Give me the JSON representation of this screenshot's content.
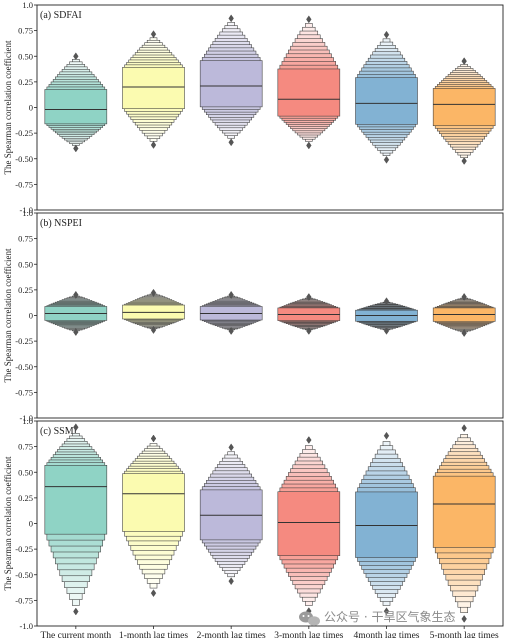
{
  "chart_data": [
    {
      "type": "letter-value plot",
      "panel_label": "(a) SDFAI",
      "ylabel": "The Spearman correlation coefficient",
      "ylim": [
        -1.0,
        1.0
      ],
      "yticks": [
        "1.0",
        "0.75",
        "0.50",
        "0.25",
        "0",
        "-0.25",
        "-0.50",
        "-0.75",
        "-1.0"
      ],
      "series": [
        {
          "category": "The current month",
          "color": "#8fd3c5",
          "median": -0.02,
          "min": -0.37,
          "max": 0.47
        },
        {
          "category": "1-month lag times",
          "color": "#fbfbb0",
          "median": 0.2,
          "min": -0.33,
          "max": 0.68
        },
        {
          "category": "2-month lag times",
          "color": "#bcb9da",
          "median": 0.21,
          "min": -0.3,
          "max": 0.83
        },
        {
          "category": "3-month lag times",
          "color": "#f58a80",
          "median": 0.08,
          "min": -0.33,
          "max": 0.82
        },
        {
          "category": "4month lag times",
          "color": "#82b2d3",
          "median": 0.04,
          "min": -0.47,
          "max": 0.67
        },
        {
          "category": "5-month lag times",
          "color": "#fbb666",
          "median": 0.03,
          "min": -0.49,
          "max": 0.42
        }
      ]
    },
    {
      "type": "letter-value plot",
      "panel_label": "(b) NSPEI",
      "ylabel": "The Spearman correlation coefficient",
      "ylim": [
        -1.0,
        1.0
      ],
      "yticks": [
        "1.0",
        "0.75",
        "0.50",
        "0.25",
        "0",
        "-0.25",
        "-0.50",
        "-0.75",
        "-1.0"
      ],
      "series": [
        {
          "category": "The current month",
          "color": "#8fd3c5",
          "median": 0.02,
          "min": -0.15,
          "max": 0.19
        },
        {
          "category": "1-month lag times",
          "color": "#fbfbb0",
          "median": 0.03,
          "min": -0.13,
          "max": 0.21
        },
        {
          "category": "2-month lag times",
          "color": "#bcb9da",
          "median": 0.02,
          "min": -0.14,
          "max": 0.19
        },
        {
          "category": "3-month lag times",
          "color": "#f58a80",
          "median": 0.01,
          "min": -0.14,
          "max": 0.17
        },
        {
          "category": "4month lag times",
          "color": "#82b2d3",
          "median": 0.0,
          "min": -0.14,
          "max": 0.13
        },
        {
          "category": "5-month lag times",
          "color": "#fbb666",
          "median": 0.01,
          "min": -0.16,
          "max": 0.17
        }
      ]
    },
    {
      "type": "letter-value plot",
      "panel_label": "(c) SSMI",
      "ylabel": "The Spearman correlation coefficient",
      "ylim": [
        -1.0,
        1.0
      ],
      "yticks": [
        "1.0",
        "0.75",
        "0.50",
        "0.25",
        "0",
        "-0.25",
        "-0.50",
        "-0.75",
        "-1.0"
      ],
      "series": [
        {
          "category": "The current month",
          "color": "#8fd3c5",
          "median": 0.36,
          "min": -0.8,
          "max": 0.88
        },
        {
          "category": "1-month lag times",
          "color": "#fbfbb0",
          "median": 0.29,
          "min": -0.63,
          "max": 0.78
        },
        {
          "category": "2-month lag times",
          "color": "#bcb9da",
          "median": 0.08,
          "min": -0.52,
          "max": 0.7
        },
        {
          "category": "3-month lag times",
          "color": "#f58a80",
          "median": 0.01,
          "min": -0.8,
          "max": 0.76
        },
        {
          "category": "4month lag times",
          "color": "#82b2d3",
          "median": -0.02,
          "min": -0.8,
          "max": 0.8
        },
        {
          "category": "5-month lag times",
          "color": "#fbb666",
          "median": 0.19,
          "min": -0.87,
          "max": 0.87
        }
      ]
    }
  ],
  "x_categories": [
    "The current month",
    "1-month lag times",
    "2-month lag times",
    "3-month lag times",
    "4month lag times",
    "5-month lag times"
  ],
  "watermark": "公众号 · 干旱区气象生态"
}
